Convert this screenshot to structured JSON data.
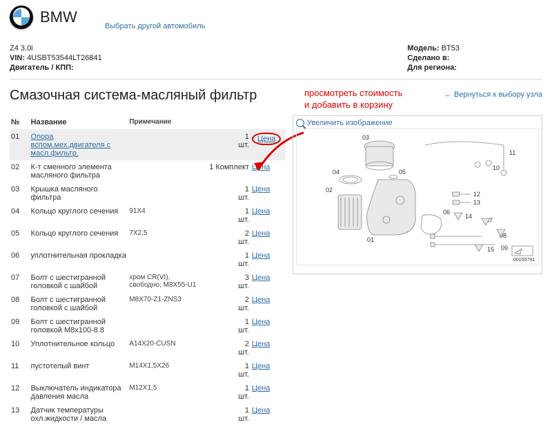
{
  "header": {
    "brand": "BMW",
    "change_vehicle_label": "Выбрать другой автомобиль"
  },
  "vehicle": {
    "left": {
      "model_line": "Z4 3.0i",
      "vin_label": "VIN:",
      "vin_value": "4USBT53544LT26841",
      "eng_label": "Двигатель / КПП:",
      "eng_value": ""
    },
    "right": {
      "model_label": "Модель:",
      "model_value": "BT53",
      "made_label": "Сделано в:",
      "made_value": "",
      "region_label": "Для региона:",
      "region_value": ""
    }
  },
  "section": {
    "title": "Смазочная система-масляный фильтр",
    "back_label": "Вернуться к выбору узла",
    "annotation_line1": "просмотреть стоимость",
    "annotation_line2": "и добавить в корзину",
    "zoom_label": "Увеличить изображение",
    "diagram_code": "00155791"
  },
  "table": {
    "headers": {
      "no": "№",
      "name": "Название",
      "note": "Примечание",
      "qty": "",
      "price": ""
    },
    "price_label": "Цена",
    "rows": [
      {
        "no": "01",
        "name": "Опора вспом.мех.двигателя с масл.фильтр.",
        "note": "",
        "qty": "1 шт.",
        "selected": true,
        "link": true
      },
      {
        "no": "02",
        "name": "К-т сменного элемента масляного фильтра",
        "note": "",
        "qty": "1 Комплект"
      },
      {
        "no": "03",
        "name": "Крышка масляного фильтра",
        "note": "",
        "qty": "1 шт."
      },
      {
        "no": "04",
        "name": "Кольцо круглого сечения",
        "note": "91X4",
        "qty": "1 шт."
      },
      {
        "no": "05",
        "name": "Кольцо круглого сечения",
        "note": "7X2,5",
        "qty": "2 шт."
      },
      {
        "no": "06",
        "name": "уплотнительная прокладка",
        "note": "",
        "qty": "1 шт."
      },
      {
        "no": "07",
        "name": "Болт с шестигранной головкой с шайбой",
        "note": "хром CR(VI), свободно; M8X55-U1",
        "qty": "3 шт."
      },
      {
        "no": "08",
        "name": "Болт с шестигранной головкой с шайбой",
        "note": "M8X70-Z1-ZNS3",
        "qty": "2 шт."
      },
      {
        "no": "09",
        "name": "Болт с шестигранной головкой M8x100-8.8",
        "note": "",
        "qty": "1 шт."
      },
      {
        "no": "10",
        "name": "Уплотнительное кольцо",
        "note": "A14X20-CUSN",
        "qty": "2 шт."
      },
      {
        "no": "11",
        "name": "пустотелый винт",
        "note": "M14X1,5X26",
        "qty": "1 шт."
      },
      {
        "no": "12",
        "name": "Выключатель индикатора давления масла",
        "note": "M12X1,5",
        "qty": "1 шт."
      },
      {
        "no": "13",
        "name": "Датчик температуры охл.жидкости / масла",
        "note": "",
        "qty": "1 шт."
      }
    ]
  },
  "colors": {
    "link": "#2f6ea5",
    "annotation": "#d90000",
    "row_selected": "#eeeeee"
  }
}
